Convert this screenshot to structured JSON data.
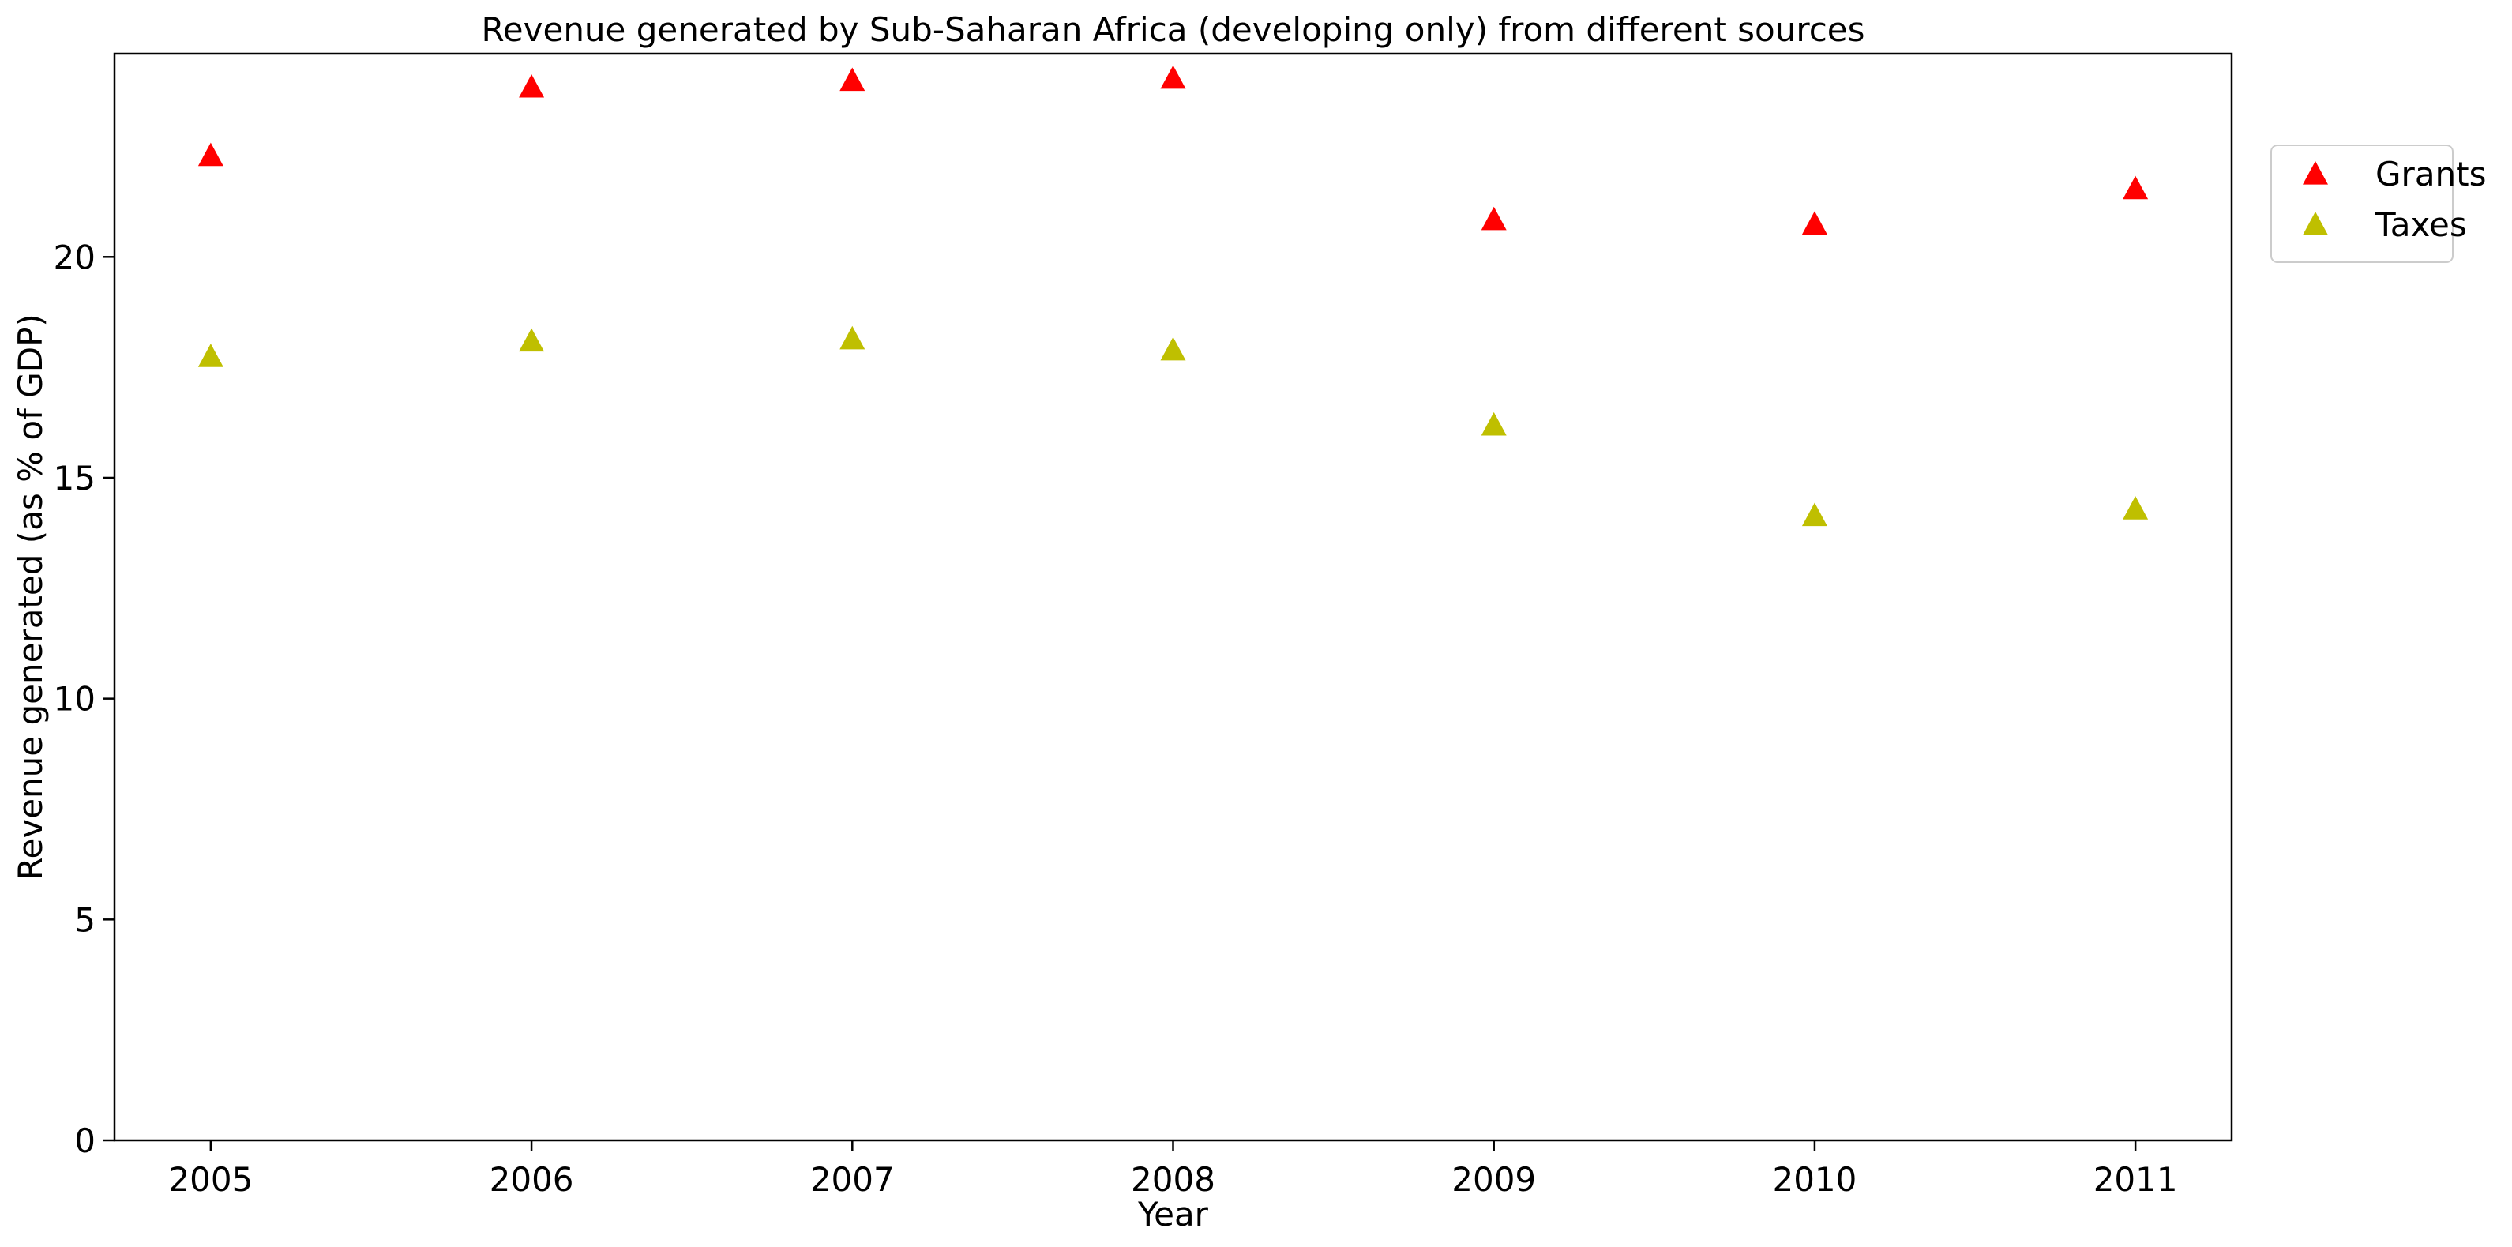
{
  "chart_data": {
    "type": "scatter",
    "title": "Revenue generated by Sub-Saharan Africa (developing only) from different sources",
    "xlabel": "Year",
    "ylabel": "Revenue generated (as % of GDP)",
    "categories": [
      "2005",
      "2006",
      "2007",
      "2008",
      "2009",
      "2010",
      "2011"
    ],
    "ylim": [
      0,
      24.6
    ],
    "yticks": [
      0,
      5,
      10,
      15,
      20
    ],
    "grid": false,
    "legend_position": "upper right, outside plot",
    "series": [
      {
        "name": "Grants",
        "color": "#ff0000",
        "marker": "triangle",
        "values": [
          22.3,
          23.85,
          24.0,
          24.05,
          20.85,
          20.75,
          21.55
        ]
      },
      {
        "name": "Taxes",
        "color": "#bfbf00",
        "marker": "triangle",
        "values": [
          17.75,
          18.1,
          18.15,
          17.9,
          16.2,
          14.15,
          14.3
        ]
      }
    ]
  }
}
